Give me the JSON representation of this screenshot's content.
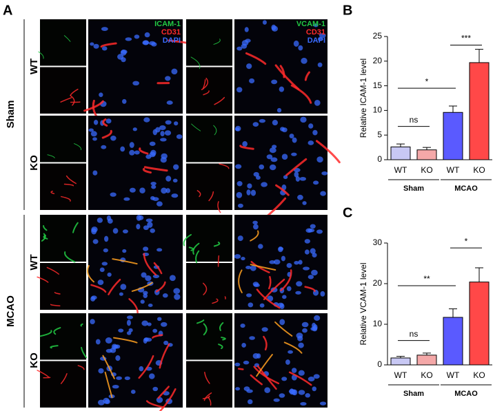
{
  "panel_a": {
    "label": "A",
    "groups": [
      "Sham",
      "MCAO"
    ],
    "genotypes": [
      "WT",
      "KO",
      "WT",
      "KO"
    ],
    "stains": [
      [
        "ICAM-1",
        "CD31",
        "DAPI"
      ],
      [
        "VCAM-1",
        "CD31",
        "DAPI"
      ]
    ],
    "stain_colors": [
      "#22cc44",
      "#ff2a2a",
      "#3a6bff"
    ]
  },
  "chart_data": [
    {
      "type": "bar",
      "panel_label": "B",
      "y_label": "Relative ICAM-1 level",
      "categories": [
        "WT",
        "KO",
        "WT",
        "KO"
      ],
      "groups": [
        "Sham",
        "MCAO"
      ],
      "values": [
        2.6,
        2.0,
        9.6,
        19.7
      ],
      "errors": [
        0.6,
        0.5,
        1.3,
        2.7
      ],
      "colors": [
        "#c8c8f4",
        "#f4a8a8",
        "#5a5aff",
        "#ff4848"
      ],
      "ylim": [
        0,
        25
      ],
      "yticks": [
        0,
        5,
        10,
        15,
        20,
        25
      ],
      "annotations": [
        "ns",
        "*",
        "***"
      ]
    },
    {
      "type": "bar",
      "panel_label": "C",
      "y_label": "Relative VCAM-1 level",
      "categories": [
        "WT",
        "KO",
        "WT",
        "KO"
      ],
      "groups": [
        "Sham",
        "MCAO"
      ],
      "values": [
        1.7,
        2.4,
        11.7,
        20.4
      ],
      "errors": [
        0.4,
        0.5,
        2.1,
        3.5
      ],
      "colors": [
        "#c8c8f4",
        "#f4a8a8",
        "#5a5aff",
        "#ff4848"
      ],
      "ylim": [
        0,
        30
      ],
      "yticks": [
        0,
        10,
        20,
        30
      ],
      "annotations": [
        "ns",
        "**",
        "*"
      ]
    }
  ]
}
